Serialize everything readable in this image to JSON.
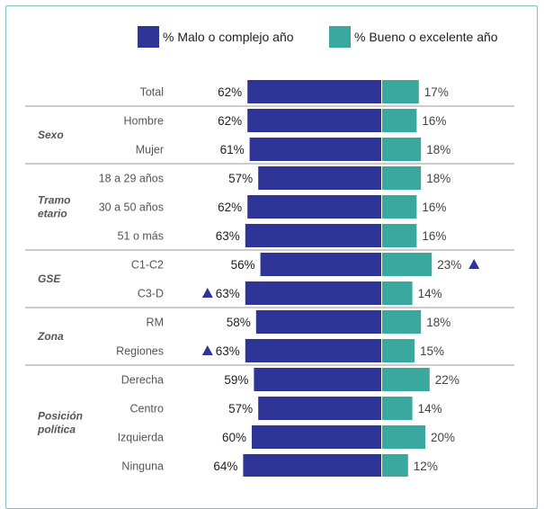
{
  "chart_data": {
    "type": "bar",
    "orientation": "diverging-horizontal",
    "legend": [
      {
        "name": "% Malo o complejo año",
        "color": "#2e3596"
      },
      {
        "name": "% Bueno o excelente año",
        "color": "#3aa89e"
      }
    ],
    "groups": [
      {
        "label": "",
        "rows": [
          {
            "category": "Total",
            "malo": 62,
            "bueno": 17,
            "malo_label": "62%",
            "bueno_label": "17%"
          }
        ]
      },
      {
        "label": "Sexo",
        "rows": [
          {
            "category": "Hombre",
            "malo": 62,
            "bueno": 16,
            "malo_label": "62%",
            "bueno_label": "16%"
          },
          {
            "category": "Mujer",
            "malo": 61,
            "bueno": 18,
            "malo_label": "61%",
            "bueno_label": "18%"
          }
        ]
      },
      {
        "label": "Tramo\netario",
        "rows": [
          {
            "category": "18 a 29 años",
            "malo": 57,
            "bueno": 18,
            "malo_label": "57%",
            "bueno_label": "18%"
          },
          {
            "category": "30 a 50 años",
            "malo": 62,
            "bueno": 16,
            "malo_label": "62%",
            "bueno_label": "16%"
          },
          {
            "category": "51 o más",
            "malo": 63,
            "bueno": 16,
            "malo_label": "63%",
            "bueno_label": "16%"
          }
        ]
      },
      {
        "label": "GSE",
        "rows": [
          {
            "category": "C1-C2",
            "malo": 56,
            "bueno": 23,
            "malo_label": "56%",
            "bueno_label": "23%",
            "bueno_up": true
          },
          {
            "category": "C3-D",
            "malo": 63,
            "bueno": 14,
            "malo_label": "63%",
            "bueno_label": "14%",
            "malo_up": true
          }
        ]
      },
      {
        "label": "Zona",
        "rows": [
          {
            "category": "RM",
            "malo": 58,
            "bueno": 18,
            "malo_label": "58%",
            "bueno_label": "18%"
          },
          {
            "category": "Regiones",
            "malo": 63,
            "bueno": 15,
            "malo_label": "63%",
            "bueno_label": "15%",
            "malo_up": true
          }
        ]
      },
      {
        "label": "Posición\npolítica",
        "rows": [
          {
            "category": "Derecha",
            "malo": 59,
            "bueno": 22,
            "malo_label": "59%",
            "bueno_label": "22%"
          },
          {
            "category": "Centro",
            "malo": 57,
            "bueno": 14,
            "malo_label": "57%",
            "bueno_label": "14%"
          },
          {
            "category": "Izquierda",
            "malo": 60,
            "bueno": 20,
            "malo_label": "60%",
            "bueno_label": "20%"
          },
          {
            "category": "Ninguna",
            "malo": 64,
            "bueno": 12,
            "malo_label": "64%",
            "bueno_label": "12%"
          }
        ]
      }
    ],
    "grid": false
  }
}
